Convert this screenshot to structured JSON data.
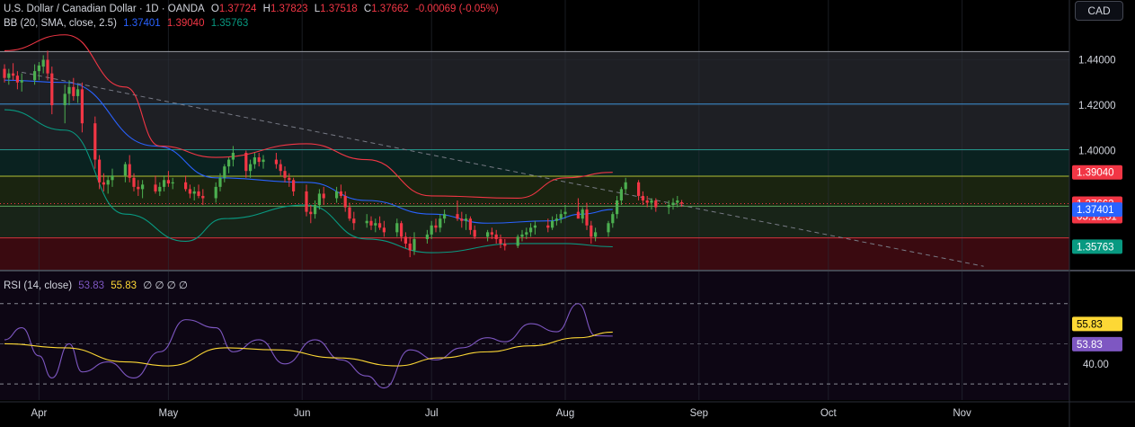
{
  "header": {
    "symbol": "U.S. Dollar / Canadian Dollar · 1D · OANDA",
    "o_label": "O",
    "open": "1.37724",
    "h_label": "H",
    "high": "1.37823",
    "l_label": "L",
    "low": "1.37518",
    "c_label": "C",
    "close": "1.37662",
    "change": "-0.00069 (-0.05%)"
  },
  "bb_legend": {
    "label": "BB (20, SMA, close, 2.5)",
    "basis": "1.37401",
    "upper": "1.39040",
    "lower": "1.35763"
  },
  "rsi_legend": {
    "label": "RSI (14, close)",
    "rsi": "53.83",
    "ma": "55.83",
    "extras": "∅ ∅ ∅ ∅"
  },
  "currency_button": "CAD",
  "colors": {
    "up": "#4caf50",
    "down": "#f23645",
    "basis": "#2962ff",
    "upper": "#f23645",
    "lower": "#089981",
    "rsi": "#7e57c2",
    "rsi_ma": "#fdd835",
    "text": "#d1d4dc"
  },
  "chart_data": [
    {
      "type": "candlestick",
      "title": "U.S. Dollar / Canadian Dollar · 1D · OANDA",
      "x_axis": {
        "type": "date",
        "range": [
          "2025-03-24",
          "2025-11-28"
        ],
        "tick_labels": [
          "Apr",
          "May",
          "Jun",
          "Jul",
          "Aug",
          "Sep",
          "Oct",
          "Nov"
        ],
        "tick_dates": [
          "2025-04-01",
          "2025-05-01",
          "2025-06-01",
          "2025-07-01",
          "2025-08-01",
          "2025-09-01",
          "2025-10-01",
          "2025-11-01"
        ]
      },
      "y_axis": {
        "range": [
          1.3475,
          1.4505
        ],
        "ticks": [
          1.4,
          1.42,
          1.44
        ],
        "tick_labels": [
          "1.40000",
          "1.42000",
          "1.44000"
        ],
        "position": "right"
      },
      "horizontal_levels": [
        1.4436,
        1.4205,
        1.4004,
        1.3887,
        1.3755,
        1.3615
      ],
      "zones": [
        {
          "from": 1.4004,
          "to": 1.4436,
          "color": "#1e1f24"
        },
        {
          "from": 1.3887,
          "to": 1.4004,
          "color": "#0a2220"
        },
        {
          "from": 1.3755,
          "to": 1.3887,
          "color": "#1a2410"
        },
        {
          "from": 1.3615,
          "to": 1.3755,
          "color": "#182418"
        },
        {
          "from": 1.3475,
          "to": 1.3615,
          "color": "#3a0a10"
        }
      ],
      "trendline": {
        "from": [
          "2025-03-28",
          1.4345
        ],
        "to": [
          "2025-11-06",
          1.349
        ],
        "style": "dashed"
      },
      "price_labels": [
        {
          "value": 1.3904,
          "text": "1.39040",
          "color": "#f23645"
        },
        {
          "value": 1.37662,
          "text": "1.37662",
          "countdown": "05:12:51",
          "color": "#f23645"
        },
        {
          "value": 1.37401,
          "text": "1.37401",
          "color": "#2962ff"
        },
        {
          "value": 1.35763,
          "text": "1.35763",
          "color": "#089981"
        }
      ],
      "candles": {
        "start_date": "2025-03-24",
        "business_days_only": true,
        "ohlc": [
          [
            1.436,
            1.438,
            1.43,
            1.432
          ],
          [
            1.432,
            1.436,
            1.429,
            1.434
          ],
          [
            1.434,
            1.4385,
            1.431,
            1.433
          ],
          [
            1.433,
            1.435,
            1.427,
            1.43
          ],
          [
            1.43,
            1.434,
            1.426,
            1.431
          ],
          [
            1.431,
            1.438,
            1.429,
            1.435
          ],
          [
            1.435,
            1.439,
            1.431,
            1.4375
          ],
          [
            1.437,
            1.442,
            1.434,
            1.44
          ],
          [
            1.44,
            1.444,
            1.431,
            1.434
          ],
          [
            1.434,
            1.437,
            1.416,
            1.42
          ],
          [
            1.42,
            1.429,
            1.412,
            1.425
          ],
          [
            1.425,
            1.431,
            1.42,
            1.428
          ],
          [
            1.428,
            1.432,
            1.422,
            1.424
          ],
          [
            1.424,
            1.429,
            1.421,
            1.427
          ],
          [
            1.427,
            1.43,
            1.408,
            1.412
          ],
          [
            1.412,
            1.415,
            1.392,
            1.396
          ],
          [
            1.396,
            1.398,
            1.383,
            1.386
          ],
          [
            1.386,
            1.39,
            1.382,
            1.385
          ],
          [
            1.385,
            1.389,
            1.381,
            1.387
          ],
          [
            1.387,
            1.392,
            1.384,
            1.389
          ],
          [
            1.389,
            1.395,
            1.386,
            1.394
          ],
          [
            1.394,
            1.398,
            1.386,
            1.388
          ],
          [
            1.388,
            1.39,
            1.382,
            1.384
          ],
          [
            1.384,
            1.387,
            1.38,
            1.383
          ],
          [
            1.383,
            1.387,
            1.379,
            1.385
          ],
          [
            1.385,
            1.389,
            1.381,
            1.382
          ],
          [
            1.382,
            1.386,
            1.38,
            1.384
          ],
          [
            1.384,
            1.389,
            1.382,
            1.387
          ],
          [
            1.387,
            1.391,
            1.384,
            1.3855
          ],
          [
            1.3855,
            1.388,
            1.383,
            1.386
          ],
          [
            1.386,
            1.389,
            1.382,
            1.383
          ],
          [
            1.383,
            1.385,
            1.379,
            1.381
          ],
          [
            1.381,
            1.384,
            1.378,
            1.382
          ],
          [
            1.382,
            1.385,
            1.379,
            1.38
          ],
          [
            1.38,
            1.383,
            1.376,
            1.379
          ],
          [
            1.379,
            1.386,
            1.377,
            1.384
          ],
          [
            1.384,
            1.39,
            1.382,
            1.388
          ],
          [
            1.388,
            1.394,
            1.386,
            1.393
          ],
          [
            1.393,
            1.397,
            1.39,
            1.396
          ],
          [
            1.396,
            1.402,
            1.393,
            1.399
          ],
          [
            1.399,
            1.4,
            1.388,
            1.391
          ],
          [
            1.391,
            1.396,
            1.388,
            1.394
          ],
          [
            1.394,
            1.399,
            1.392,
            1.397
          ],
          [
            1.397,
            1.399,
            1.393,
            1.395
          ],
          [
            1.395,
            1.398,
            1.392,
            1.396
          ],
          [
            1.396,
            1.399,
            1.392,
            1.394
          ],
          [
            1.394,
            1.396,
            1.389,
            1.391
          ],
          [
            1.391,
            1.393,
            1.386,
            1.388
          ],
          [
            1.388,
            1.39,
            1.384,
            1.387
          ],
          [
            1.387,
            1.388,
            1.38,
            1.382
          ],
          [
            1.382,
            1.385,
            1.371,
            1.373
          ],
          [
            1.373,
            1.376,
            1.368,
            1.372
          ],
          [
            1.372,
            1.378,
            1.37,
            1.376
          ],
          [
            1.376,
            1.383,
            1.374,
            1.381
          ],
          [
            1.381,
            1.384,
            1.376,
            1.379
          ],
          [
            1.379,
            1.384,
            1.377,
            1.382
          ],
          [
            1.382,
            1.385,
            1.379,
            1.38
          ],
          [
            1.38,
            1.382,
            1.373,
            1.375
          ],
          [
            1.375,
            1.377,
            1.369,
            1.37
          ],
          [
            1.37,
            1.373,
            1.365,
            1.368
          ],
          [
            1.368,
            1.372,
            1.366,
            1.369
          ],
          [
            1.369,
            1.371,
            1.365,
            1.367
          ],
          [
            1.367,
            1.37,
            1.364,
            1.368
          ],
          [
            1.368,
            1.371,
            1.365,
            1.366
          ],
          [
            1.366,
            1.369,
            1.362,
            1.364
          ],
          [
            1.364,
            1.37,
            1.362,
            1.368
          ],
          [
            1.368,
            1.369,
            1.36,
            1.362
          ],
          [
            1.362,
            1.364,
            1.357,
            1.359
          ],
          [
            1.359,
            1.362,
            1.353,
            1.356
          ],
          [
            1.356,
            1.364,
            1.354,
            1.361
          ],
          [
            1.361,
            1.365,
            1.359,
            1.363
          ],
          [
            1.363,
            1.369,
            1.361,
            1.367
          ],
          [
            1.367,
            1.37,
            1.364,
            1.366
          ],
          [
            1.366,
            1.372,
            1.364,
            1.37
          ],
          [
            1.37,
            1.374,
            1.368,
            1.372
          ],
          [
            1.372,
            1.378,
            1.369,
            1.37
          ],
          [
            1.37,
            1.373,
            1.366,
            1.369
          ],
          [
            1.369,
            1.372,
            1.365,
            1.37
          ],
          [
            1.37,
            1.371,
            1.363,
            1.365
          ],
          [
            1.365,
            1.367,
            1.361,
            1.362
          ],
          [
            1.362,
            1.365,
            1.36,
            1.364
          ],
          [
            1.364,
            1.366,
            1.361,
            1.363
          ],
          [
            1.363,
            1.365,
            1.359,
            1.361
          ],
          [
            1.361,
            1.363,
            1.357,
            1.359
          ],
          [
            1.359,
            1.361,
            1.356,
            1.358
          ],
          [
            1.358,
            1.363,
            1.357,
            1.362
          ],
          [
            1.362,
            1.365,
            1.36,
            1.363
          ],
          [
            1.363,
            1.366,
            1.361,
            1.364
          ],
          [
            1.364,
            1.368,
            1.362,
            1.366
          ],
          [
            1.366,
            1.369,
            1.363,
            1.367
          ],
          [
            1.367,
            1.37,
            1.364,
            1.366
          ],
          [
            1.366,
            1.371,
            1.365,
            1.369
          ],
          [
            1.369,
            1.372,
            1.367,
            1.37
          ],
          [
            1.37,
            1.374,
            1.368,
            1.372
          ],
          [
            1.372,
            1.376,
            1.37,
            1.373
          ],
          [
            1.373,
            1.379,
            1.371,
            1.37
          ],
          [
            1.37,
            1.375,
            1.368,
            1.374
          ],
          [
            1.374,
            1.377,
            1.365,
            1.367
          ],
          [
            1.367,
            1.369,
            1.359,
            1.362
          ],
          [
            1.362,
            1.366,
            1.36,
            1.364
          ],
          [
            1.364,
            1.369,
            1.362,
            1.368
          ],
          [
            1.368,
            1.373,
            1.366,
            1.372
          ],
          [
            1.372,
            1.38,
            1.37,
            1.378
          ],
          [
            1.378,
            1.384,
            1.376,
            1.383
          ],
          [
            1.383,
            1.388,
            1.381,
            1.386
          ],
          [
            1.386,
            1.387,
            1.378,
            1.38
          ],
          [
            1.38,
            1.382,
            1.376,
            1.378
          ],
          [
            1.378,
            1.38,
            1.375,
            1.377
          ],
          [
            1.377,
            1.379,
            1.374,
            1.378
          ],
          [
            1.378,
            1.379,
            1.373,
            1.375
          ],
          [
            1.375,
            1.378,
            1.372,
            1.376
          ],
          [
            1.376,
            1.379,
            1.374,
            1.377
          ],
          [
            1.377,
            1.38,
            1.375,
            1.378
          ],
          [
            1.3772,
            1.3782,
            1.3752,
            1.3766
          ]
        ]
      },
      "series": [
        {
          "name": "BB basis",
          "color": "#2962ff",
          "anchor_dates": [
            "2025-03-24",
            "2025-04-07",
            "2025-04-28",
            "2025-05-12",
            "2025-06-02",
            "2025-06-16",
            "2025-07-01",
            "2025-07-14",
            "2025-07-28",
            "2025-08-05",
            "2025-08-12"
          ],
          "values": [
            1.431,
            1.43,
            1.402,
            1.388,
            1.386,
            1.378,
            1.372,
            1.368,
            1.369,
            1.372,
            1.374
          ]
        },
        {
          "name": "BB upper",
          "color": "#f23645",
          "anchor_dates": [
            "2025-03-24",
            "2025-04-07",
            "2025-04-21",
            "2025-04-29",
            "2025-05-12",
            "2025-06-02",
            "2025-06-16",
            "2025-07-01",
            "2025-07-21",
            "2025-08-01",
            "2025-08-12"
          ],
          "values": [
            1.444,
            1.451,
            1.428,
            1.402,
            1.397,
            1.403,
            1.396,
            1.38,
            1.379,
            1.388,
            1.3904
          ]
        },
        {
          "name": "BB lower",
          "color": "#089981",
          "anchor_dates": [
            "2025-03-24",
            "2025-04-07",
            "2025-04-21",
            "2025-05-05",
            "2025-05-14",
            "2025-06-02",
            "2025-06-16",
            "2025-07-01",
            "2025-07-21",
            "2025-08-01",
            "2025-08-12"
          ],
          "values": [
            1.418,
            1.409,
            1.372,
            1.36,
            1.37,
            1.376,
            1.361,
            1.355,
            1.359,
            1.359,
            1.3576
          ]
        }
      ]
    },
    {
      "type": "line",
      "title": "RSI (14, close)",
      "x_axis": {
        "type": "date",
        "range": [
          "2025-03-24",
          "2025-11-28"
        ]
      },
      "y_axis": {
        "range": [
          22,
          86
        ],
        "ticks": [
          40
        ],
        "tick_labels": [
          "40.00"
        ],
        "levels": [
          70,
          50,
          30
        ]
      },
      "price_labels": [
        {
          "value": 55.83,
          "text": "55.83",
          "color": "#fdd835"
        },
        {
          "value": 53.83,
          "text": "53.83",
          "color": "#7e57c2"
        }
      ],
      "series": [
        {
          "name": "RSI",
          "color": "#7e57c2",
          "anchor_dates": [
            "2025-03-24",
            "2025-03-28",
            "2025-04-01",
            "2025-04-04",
            "2025-04-08",
            "2025-04-11",
            "2025-04-17",
            "2025-04-23",
            "2025-04-29",
            "2025-05-05",
            "2025-05-12",
            "2025-05-16",
            "2025-05-22",
            "2025-05-28",
            "2025-06-04",
            "2025-06-10",
            "2025-06-16",
            "2025-06-20",
            "2025-06-26",
            "2025-07-02",
            "2025-07-08",
            "2025-07-14",
            "2025-07-18",
            "2025-07-24",
            "2025-07-30",
            "2025-08-04",
            "2025-08-08",
            "2025-08-12"
          ],
          "values": [
            52,
            58,
            44,
            33,
            50,
            36,
            41,
            33,
            46,
            62,
            58,
            46,
            52,
            40,
            52,
            42,
            34,
            28,
            47,
            42,
            48,
            53,
            51,
            60,
            56,
            70,
            54,
            53.83
          ]
        },
        {
          "name": "RSI MA",
          "color": "#fdd835",
          "anchor_dates": [
            "2025-03-24",
            "2025-04-07",
            "2025-04-21",
            "2025-05-01",
            "2025-05-14",
            "2025-05-26",
            "2025-06-09",
            "2025-06-23",
            "2025-07-03",
            "2025-07-14",
            "2025-07-24",
            "2025-08-04",
            "2025-08-12"
          ],
          "values": [
            50,
            48,
            41,
            39,
            48,
            47,
            43,
            39,
            43,
            46,
            49,
            53,
            55.83
          ]
        }
      ]
    }
  ]
}
